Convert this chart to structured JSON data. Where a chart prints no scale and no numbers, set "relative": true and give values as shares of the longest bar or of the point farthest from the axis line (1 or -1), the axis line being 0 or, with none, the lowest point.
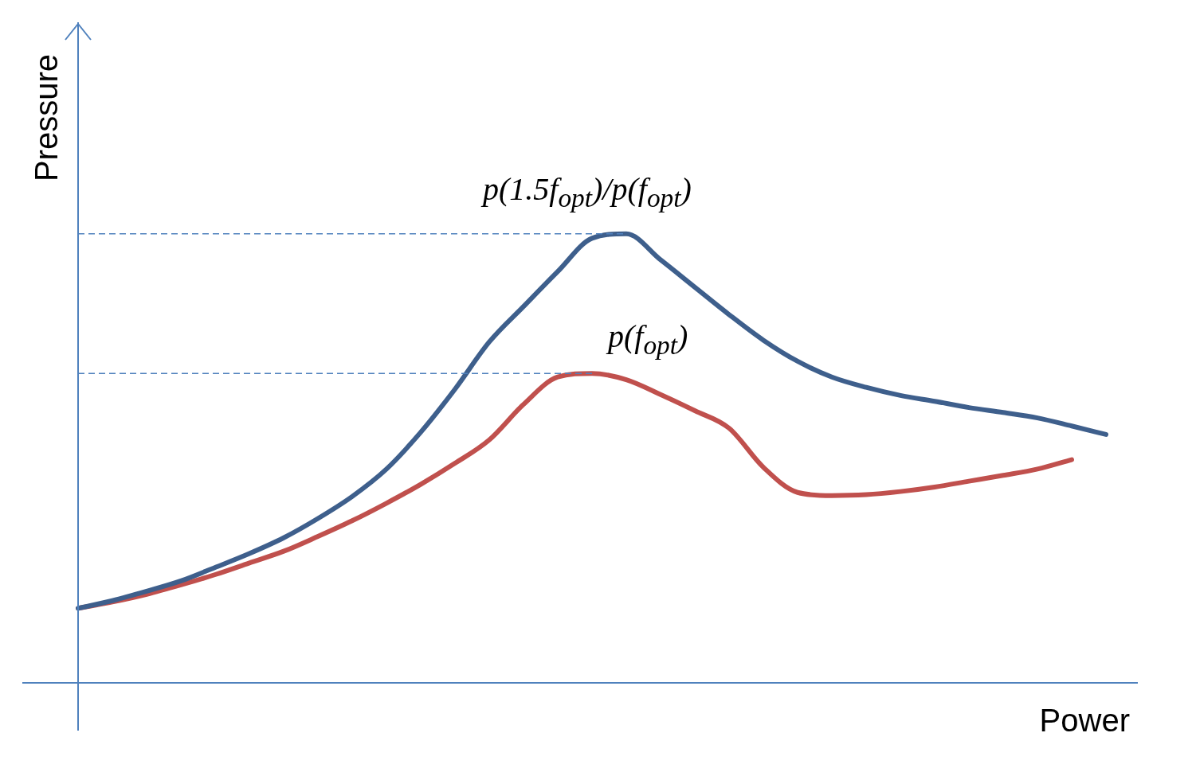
{
  "chart_data": {
    "type": "line",
    "relative": true,
    "xlabel": "Power",
    "ylabel": "Pressure",
    "grid": false,
    "legend": false,
    "marker": "none",
    "line_style": "solid",
    "categories": [
      null,
      null,
      null,
      null,
      null,
      null,
      null,
      null,
      null,
      null,
      null,
      null,
      null,
      null,
      null,
      null,
      null,
      null,
      null,
      null,
      null,
      null,
      null,
      null,
      null,
      null,
      null,
      null,
      null,
      null,
      null
    ],
    "series": [
      {
        "color": "#3e5f8c",
        "values": [
          0.166,
          0.183,
          0.204,
          0.227,
          0.257,
          0.288,
          0.323,
          0.366,
          0.415,
          0.476,
          0.558,
          0.654,
          0.759,
          0.838,
          0.916,
          0.99,
          1,
          0.942,
          0.881,
          0.82,
          0.763,
          0.716,
          0.681,
          0.658,
          0.64,
          0.627,
          0.613,
          0.602,
          0.59,
          0.572,
          0.553
        ]
      },
      {
        "color": "#c0504d",
        "values": [
          0.166,
          0.18,
          0.197,
          0.218,
          0.241,
          0.267,
          0.293,
          0.326,
          0.361,
          0.4,
          0.442,
          0.489,
          0.541,
          0.62,
          0.681,
          0.689,
          0.675,
          0.642,
          0.606,
          0.567,
          0.48,
          0.424,
          0.417,
          0.419,
          0.426,
          0.436,
          0.449,
          0.462,
          0.476,
          0.497,
          null
        ]
      }
    ],
    "ref_lines": [
      {
        "axis": "y",
        "value": 1,
        "color": "#4f81bd",
        "line_style": "dashed"
      },
      {
        "axis": "y",
        "value": 0.689,
        "color": "#4f81bd",
        "line_style": "dashed"
      }
    ],
    "annotations": [
      "p(1.5f$_{opt}$)/p(f$_{opt}$)",
      "p(f$_{opt}$)"
    ]
  }
}
